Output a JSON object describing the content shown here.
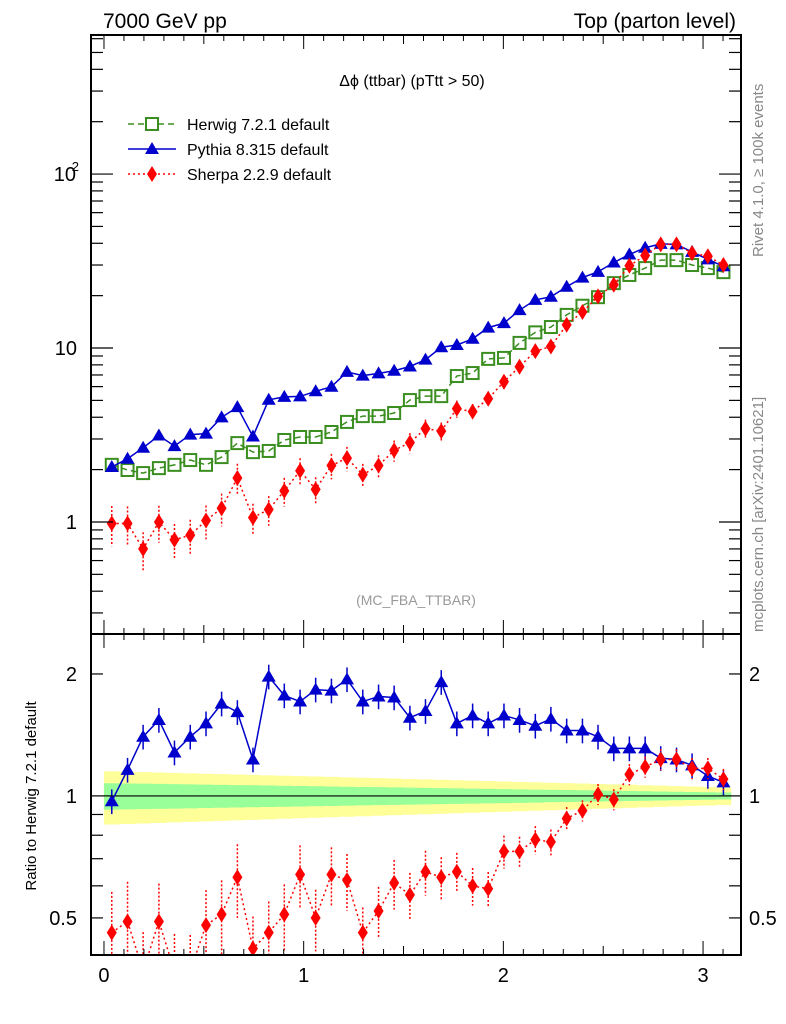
{
  "header": {
    "left": "7000 GeV pp",
    "right": "Top (parton level)"
  },
  "side_labels": {
    "rivet": "Rivet 4.1.0, ≥ 100k events",
    "mcplots": "mcplots.cern.ch [arXiv:2401.10621]"
  },
  "chart_data": [
    {
      "type": "line",
      "panel": "main",
      "title": "Δϕ (ttbar) (pTtt > 50)",
      "analysis_label": "(MC_FBA_TTBAR)",
      "xlabel": "",
      "ylabel": "",
      "yscale": "log",
      "xlim": [
        -0.065,
        3.19
      ],
      "ylim": [
        0.227,
        630
      ],
      "x_ticks": [
        "0",
        "1",
        "2",
        "3"
      ],
      "y_ticks": [
        {
          "value": 1,
          "label": "1"
        },
        {
          "value": 10,
          "label": "10"
        },
        {
          "value": 100,
          "label": "10^2"
        }
      ],
      "legend_position": "top-left",
      "x": [
        0.039,
        0.118,
        0.196,
        0.275,
        0.353,
        0.432,
        0.511,
        0.589,
        0.668,
        0.746,
        0.825,
        0.903,
        0.982,
        1.06,
        1.139,
        1.217,
        1.296,
        1.375,
        1.453,
        1.532,
        1.61,
        1.689,
        1.767,
        1.846,
        1.924,
        2.003,
        2.081,
        2.16,
        2.238,
        2.317,
        2.396,
        2.474,
        2.553,
        2.631,
        2.71,
        2.788,
        2.867,
        2.945,
        3.024,
        3.102
      ],
      "series": [
        {
          "name": "Herwig 7.2.1 default",
          "color": "#3a8e1f",
          "marker": "open-square",
          "linestyle": "dashed",
          "values": [
            2.13,
            1.99,
            1.91,
            2.04,
            2.13,
            2.27,
            2.13,
            2.36,
            2.84,
            2.52,
            2.56,
            2.96,
            3.08,
            3.08,
            3.29,
            3.76,
            4.06,
            4.06,
            4.23,
            5.02,
            5.29,
            5.29,
            6.9,
            7.18,
            8.66,
            8.77,
            10.7,
            12.3,
            13.2,
            15.5,
            17.5,
            19.6,
            23.6,
            26.3,
            28.8,
            32.0,
            32.0,
            30.0,
            28.8,
            27.3
          ]
        },
        {
          "name": "Pythia 8.315 default",
          "color": "#0000cc",
          "marker": "filled-triangle",
          "linestyle": "solid",
          "values": [
            2.07,
            2.31,
            2.67,
            3.14,
            2.73,
            3.18,
            3.22,
            3.99,
            4.57,
            3.1,
            5.04,
            5.24,
            5.27,
            5.64,
            5.99,
            7.29,
            6.94,
            7.15,
            7.4,
            7.83,
            8.57,
            10.1,
            10.4,
            11.3,
            13.1,
            13.9,
            16.5,
            18.9,
            19.7,
            22.5,
            25.4,
            27.4,
            31.0,
            34.5,
            37.7,
            39.7,
            39.4,
            35.7,
            32.3,
            29.5
          ]
        },
        {
          "name": "Sherpa 2.2.9 default",
          "color": "#ff0000",
          "marker": "filled-diamond",
          "linestyle": "dotted",
          "values": [
            0.98,
            0.98,
            0.7,
            1.0,
            0.79,
            0.84,
            1.02,
            1.2,
            1.79,
            1.06,
            1.18,
            1.51,
            1.97,
            1.54,
            2.11,
            2.33,
            1.87,
            2.11,
            2.58,
            2.86,
            3.44,
            3.33,
            4.48,
            4.31,
            5.11,
            6.4,
            7.81,
            9.59,
            10.2,
            13.6,
            16.1,
            19.8,
            23.1,
            29.7,
            34.0,
            39.4,
            39.4,
            35.1,
            33.7,
            30.0
          ]
        }
      ]
    },
    {
      "type": "line",
      "panel": "ratio",
      "ylabel": "Ratio to Herwig 7.2.1 default",
      "yscale": "log",
      "xlim": [
        -0.065,
        3.19
      ],
      "ylim": [
        0.405,
        2.51
      ],
      "x_ticks": [
        "0",
        "1",
        "2",
        "3"
      ],
      "y_ticks": [
        {
          "value": 0.5,
          "label": "0.5"
        },
        {
          "value": 1,
          "label": "1"
        },
        {
          "value": 2,
          "label": "2"
        }
      ],
      "reference_band": {
        "inner_color": "#99ff99",
        "outer_color": "#ffff99",
        "inner_halfwidth_start": 0.075,
        "inner_halfwidth_end": 0.02,
        "outer_halfwidth_start": 0.15,
        "outer_halfwidth_end": 0.05
      },
      "series": [
        {
          "name": "Pythia 8.315 default",
          "color": "#0000cc",
          "values": [
            0.97,
            1.16,
            1.4,
            1.54,
            1.28,
            1.4,
            1.51,
            1.69,
            1.61,
            1.23,
            1.97,
            1.77,
            1.71,
            1.83,
            1.82,
            1.94,
            1.71,
            1.76,
            1.75,
            1.56,
            1.62,
            1.91,
            1.51,
            1.58,
            1.51,
            1.58,
            1.54,
            1.49,
            1.55,
            1.45,
            1.45,
            1.4,
            1.31,
            1.31,
            1.31,
            1.24,
            1.23,
            1.19,
            1.12,
            1.08
          ]
        },
        {
          "name": "Sherpa 2.2.9 default",
          "color": "#ff0000",
          "values": [
            0.46,
            0.49,
            0.37,
            0.49,
            0.37,
            0.37,
            0.48,
            0.51,
            0.63,
            0.42,
            0.46,
            0.51,
            0.64,
            0.5,
            0.64,
            0.62,
            0.46,
            0.52,
            0.61,
            0.57,
            0.65,
            0.63,
            0.65,
            0.6,
            0.59,
            0.73,
            0.73,
            0.78,
            0.77,
            0.88,
            0.92,
            1.01,
            0.98,
            1.13,
            1.18,
            1.23,
            1.23,
            1.17,
            1.17,
            1.1
          ]
        }
      ]
    }
  ]
}
